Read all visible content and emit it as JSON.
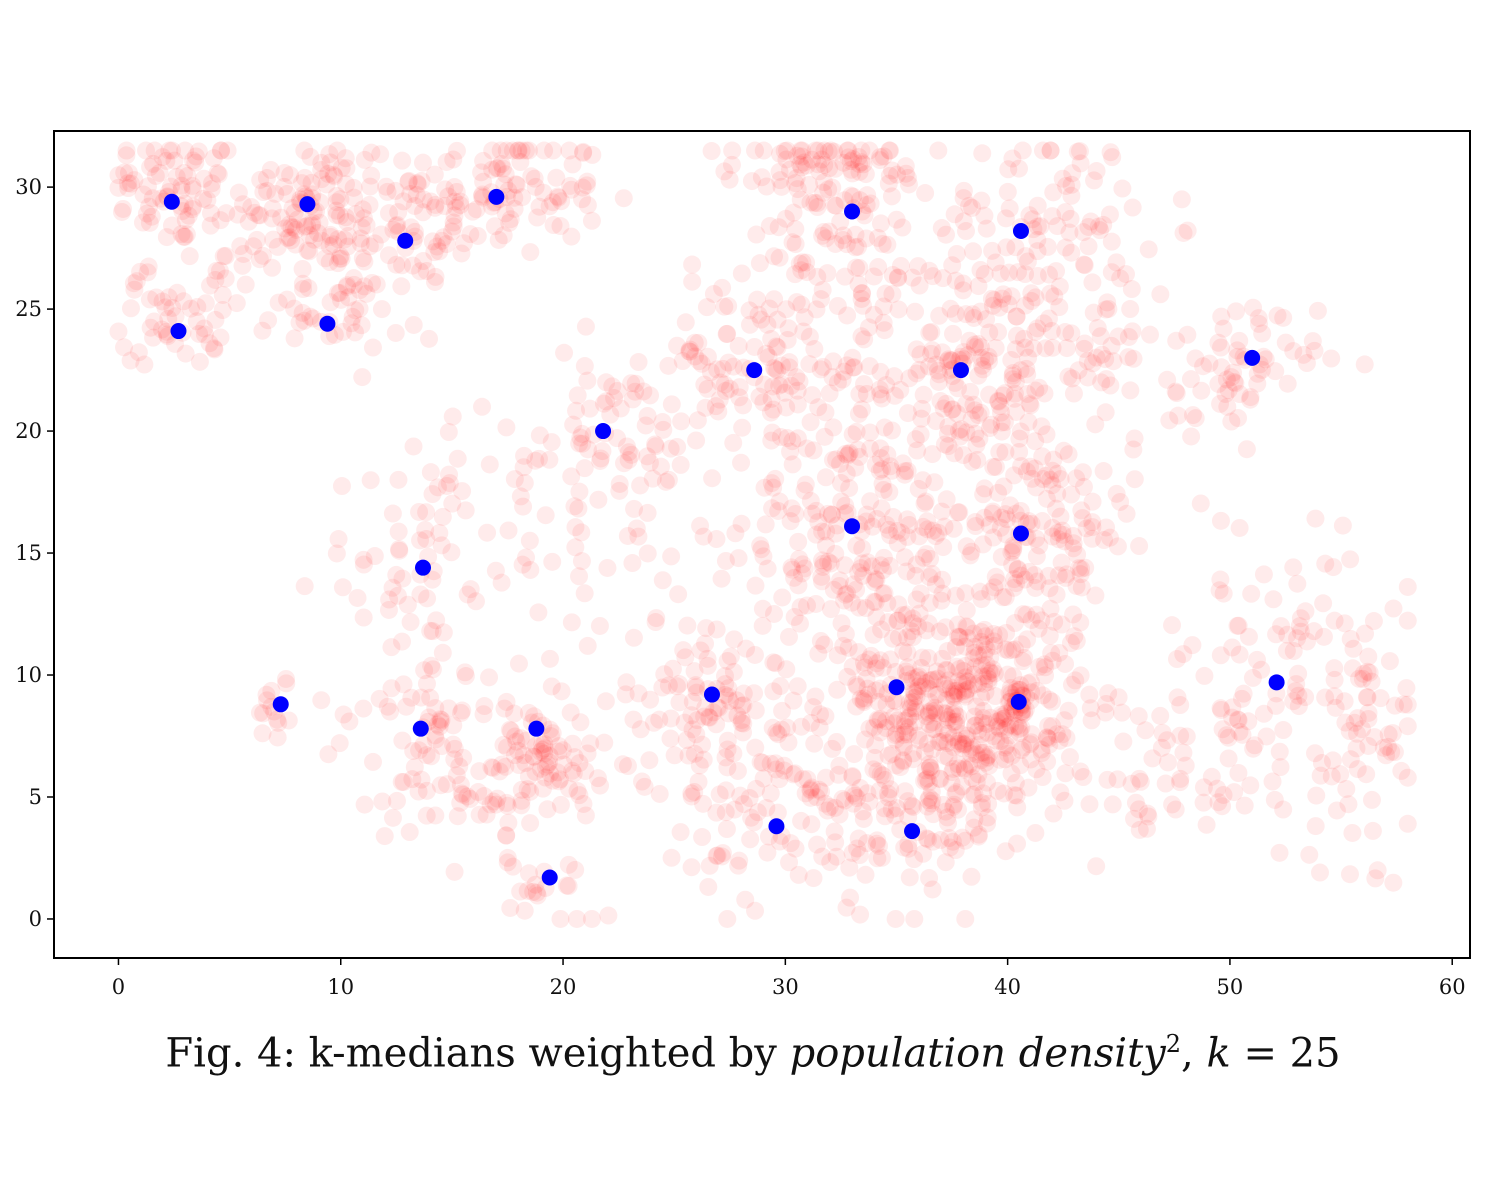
{
  "caption": {
    "prefix": "Fig. 4: k-medians weighted by ",
    "italic": "population density",
    "superscript": "2",
    "separator": ", ",
    "k_label": "k",
    "k_rel": " = 25"
  },
  "chart_data": {
    "type": "scatter",
    "title": "",
    "xlabel": "",
    "ylabel": "",
    "xlim": [
      -2.9,
      60.8
    ],
    "ylim": [
      -1.6,
      32.3
    ],
    "xticks": [
      0,
      10,
      20,
      30,
      40,
      50,
      60
    ],
    "yticks": [
      0,
      5,
      10,
      15,
      20,
      25,
      30
    ],
    "grid": false,
    "legend": "none",
    "colors": {
      "points": "#ff0000",
      "centers": "#0000ff"
    },
    "series": [
      {
        "role": "population points (semi-transparent)",
        "marker_alpha": 0.08,
        "clusters": [
          {
            "cx": 2.5,
            "cy": 30.0,
            "sx": 1.6,
            "sy": 1.2,
            "n": 70
          },
          {
            "cx": 8.5,
            "cy": 29.5,
            "sx": 2.0,
            "sy": 1.4,
            "n": 90
          },
          {
            "cx": 17.0,
            "cy": 29.8,
            "sx": 2.4,
            "sy": 1.3,
            "n": 110
          },
          {
            "cx": 12.5,
            "cy": 27.8,
            "sx": 2.2,
            "sy": 1.2,
            "n": 60
          },
          {
            "cx": 2.5,
            "cy": 24.5,
            "sx": 1.2,
            "sy": 0.9,
            "n": 40
          },
          {
            "cx": 9.5,
            "cy": 24.8,
            "sx": 1.6,
            "sy": 0.9,
            "n": 40
          },
          {
            "cx": 5.5,
            "cy": 27.0,
            "sx": 2.0,
            "sy": 1.2,
            "n": 40
          },
          {
            "cx": 33.0,
            "cy": 28.5,
            "sx": 2.4,
            "sy": 2.0,
            "n": 110
          },
          {
            "cx": 41.5,
            "cy": 28.5,
            "sx": 2.2,
            "sy": 2.0,
            "n": 90
          },
          {
            "cx": 31.0,
            "cy": 30.8,
            "sx": 1.8,
            "sy": 0.6,
            "n": 45
          },
          {
            "cx": 28.5,
            "cy": 22.5,
            "sx": 2.6,
            "sy": 1.8,
            "n": 110
          },
          {
            "cx": 38.0,
            "cy": 22.5,
            "sx": 2.8,
            "sy": 2.2,
            "n": 190
          },
          {
            "cx": 33.0,
            "cy": 16.0,
            "sx": 2.5,
            "sy": 2.4,
            "n": 170
          },
          {
            "cx": 41.0,
            "cy": 16.0,
            "sx": 2.4,
            "sy": 2.4,
            "n": 170
          },
          {
            "cx": 39.0,
            "cy": 8.5,
            "sx": 2.4,
            "sy": 2.2,
            "n": 330
          },
          {
            "cx": 35.0,
            "cy": 9.5,
            "sx": 2.4,
            "sy": 2.2,
            "n": 140
          },
          {
            "cx": 35.5,
            "cy": 4.0,
            "sx": 2.0,
            "sy": 2.0,
            "n": 90
          },
          {
            "cx": 30.0,
            "cy": 4.0,
            "sx": 2.2,
            "sy": 1.8,
            "n": 70
          },
          {
            "cx": 27.0,
            "cy": 8.5,
            "sx": 2.2,
            "sy": 2.0,
            "n": 110
          },
          {
            "cx": 22.0,
            "cy": 20.0,
            "sx": 2.2,
            "sy": 1.8,
            "n": 60
          },
          {
            "cx": 18.0,
            "cy": 17.5,
            "sx": 2.6,
            "sy": 1.6,
            "n": 40
          },
          {
            "cx": 13.5,
            "cy": 14.5,
            "sx": 2.2,
            "sy": 2.2,
            "n": 50
          },
          {
            "cx": 13.5,
            "cy": 8.0,
            "sx": 2.0,
            "sy": 1.6,
            "n": 40
          },
          {
            "cx": 16.5,
            "cy": 6.0,
            "sx": 2.2,
            "sy": 1.6,
            "n": 90
          },
          {
            "cx": 19.5,
            "cy": 6.5,
            "sx": 1.4,
            "sy": 1.4,
            "n": 50
          },
          {
            "cx": 7.0,
            "cy": 8.5,
            "sx": 0.9,
            "sy": 0.8,
            "n": 15
          },
          {
            "cx": 19.5,
            "cy": 1.2,
            "sx": 1.0,
            "sy": 0.8,
            "n": 20
          },
          {
            "cx": 50.0,
            "cy": 22.5,
            "sx": 2.0,
            "sy": 1.3,
            "n": 70
          },
          {
            "cx": 52.0,
            "cy": 10.0,
            "sx": 3.0,
            "sy": 3.0,
            "n": 100
          },
          {
            "cx": 56.0,
            "cy": 7.5,
            "sx": 1.8,
            "sy": 3.0,
            "n": 60
          },
          {
            "cx": 47.0,
            "cy": 5.5,
            "sx": 2.2,
            "sy": 1.4,
            "n": 40
          },
          {
            "cx": 44.0,
            "cy": 25.0,
            "sx": 2.0,
            "sy": 2.0,
            "n": 40
          },
          {
            "cx": 25.0,
            "cy": 13.0,
            "sx": 4.0,
            "sy": 4.0,
            "n": 40
          }
        ]
      },
      {
        "role": "cluster centers",
        "points": [
          [
            2.4,
            29.4
          ],
          [
            2.7,
            24.1
          ],
          [
            8.5,
            29.3
          ],
          [
            9.4,
            24.4
          ],
          [
            12.9,
            27.8
          ],
          [
            17.0,
            29.6
          ],
          [
            21.8,
            20.0
          ],
          [
            13.7,
            14.4
          ],
          [
            7.3,
            8.8
          ],
          [
            13.6,
            7.8
          ],
          [
            18.8,
            7.8
          ],
          [
            19.4,
            1.7
          ],
          [
            26.7,
            9.2
          ],
          [
            28.6,
            22.5
          ],
          [
            29.6,
            3.8
          ],
          [
            33.0,
            29.0
          ],
          [
            33.0,
            16.1
          ],
          [
            35.0,
            9.5
          ],
          [
            35.7,
            3.6
          ],
          [
            37.9,
            22.5
          ],
          [
            40.6,
            28.2
          ],
          [
            40.6,
            15.8
          ],
          [
            40.5,
            8.9
          ],
          [
            51.0,
            23.0
          ],
          [
            52.1,
            9.7
          ]
        ]
      }
    ]
  }
}
